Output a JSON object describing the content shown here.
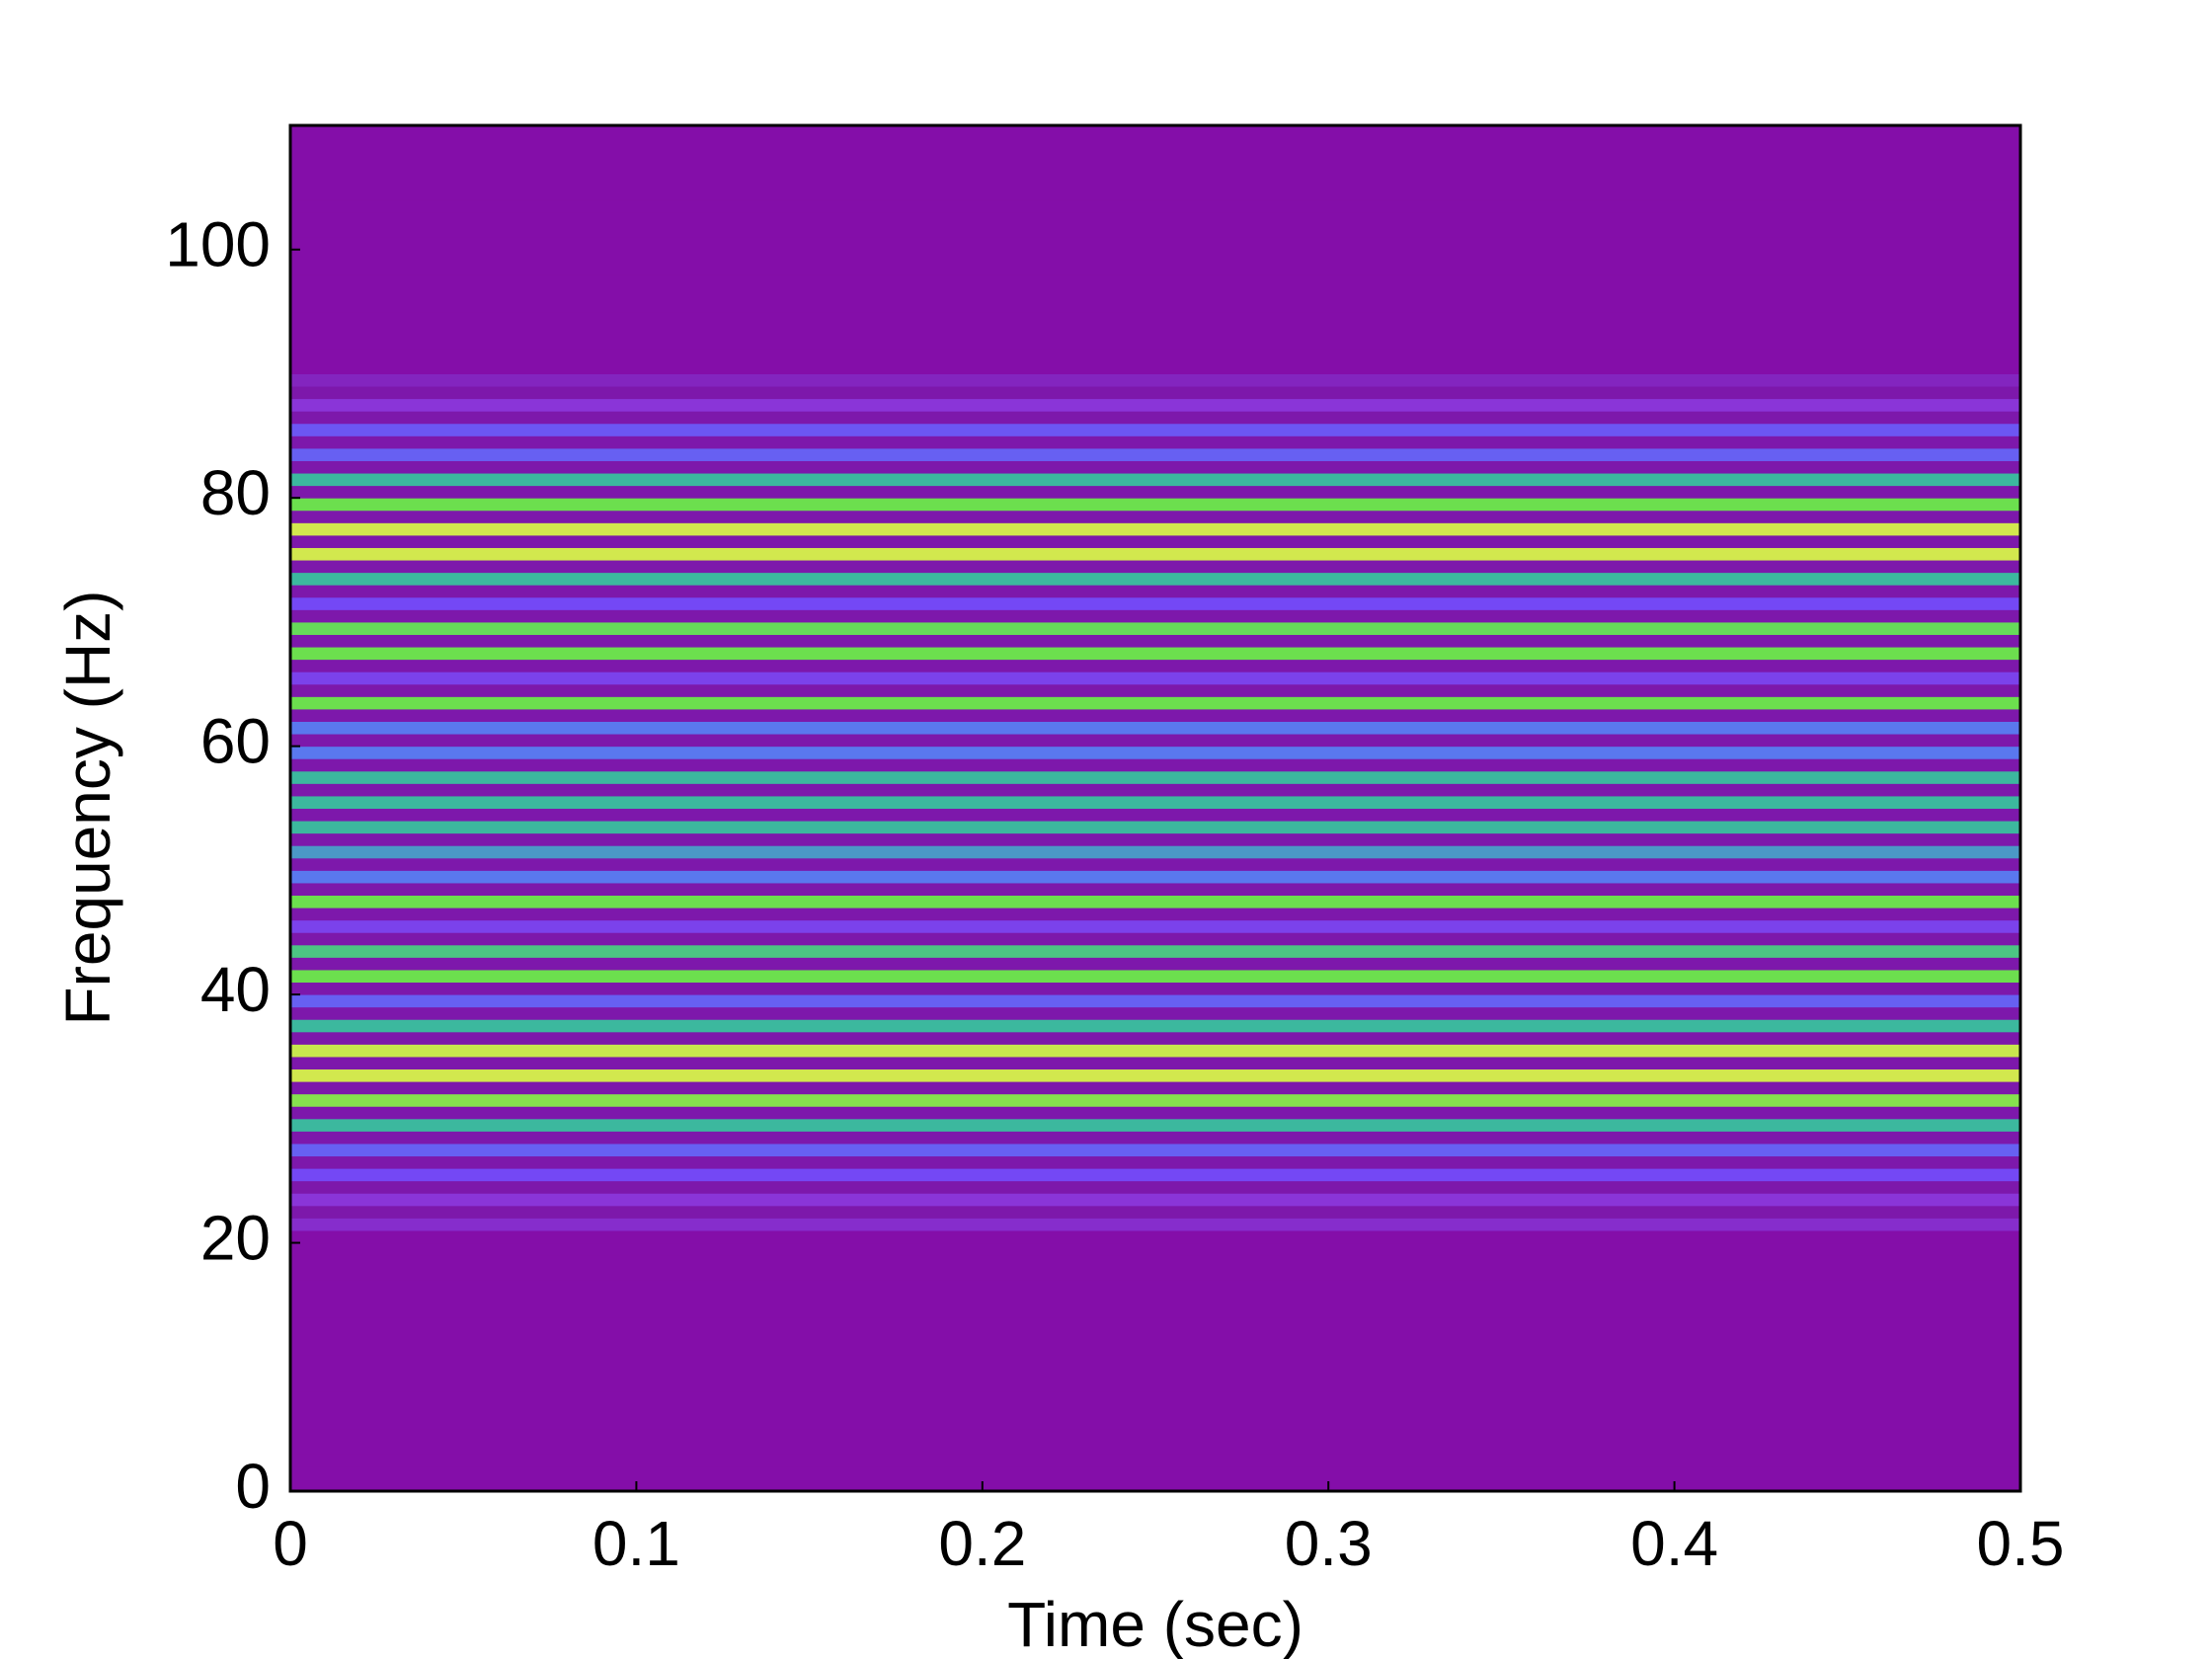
{
  "chart_data": {
    "type": "heatmap",
    "x_label": "Time (sec)",
    "y_label": "Frequency (Hz)",
    "xlim": [
      0,
      0.5
    ],
    "xticks": [
      0,
      0.1,
      0.2,
      0.3,
      0.4,
      0.5
    ],
    "ylim": [
      0,
      110
    ],
    "yticks": [
      0,
      20,
      40,
      60,
      80,
      100
    ],
    "bins": [
      0,
      1,
      2,
      3,
      4,
      5,
      6,
      7,
      8,
      9,
      10,
      11,
      12,
      13,
      14,
      15,
      16,
      17,
      18,
      19,
      20,
      21,
      22,
      23,
      24,
      25,
      26,
      27,
      28,
      29,
      30,
      31,
      32,
      33,
      34,
      35,
      36,
      37,
      38,
      39,
      40,
      41,
      42,
      43,
      44,
      45,
      46,
      47,
      48,
      49,
      50,
      51,
      52,
      53,
      54,
      55,
      56,
      57,
      58,
      59,
      60,
      61,
      62,
      63,
      64,
      65,
      66,
      67,
      68,
      69,
      70,
      71,
      72,
      73,
      74,
      75,
      76,
      77,
      78,
      79,
      80,
      81,
      82,
      83,
      84,
      85,
      86,
      87,
      88,
      89,
      90,
      91,
      92,
      93,
      94,
      95,
      96,
      97,
      98,
      99,
      100,
      101,
      102,
      103,
      104,
      105,
      106,
      107,
      108,
      109,
      110
    ],
    "values": [
      0,
      0,
      0,
      0,
      0,
      0,
      0,
      0,
      0,
      0,
      0,
      0,
      0,
      0,
      0,
      0,
      0,
      0,
      0,
      0,
      0,
      0.15,
      0.02,
      0.2,
      0.02,
      0.35,
      0.02,
      0.4,
      0.02,
      0.55,
      0.02,
      0.75,
      0.02,
      0.9,
      0.02,
      0.88,
      0.02,
      0.55,
      0.02,
      0.4,
      0.02,
      0.7,
      0.02,
      0.6,
      0.02,
      0.3,
      0.02,
      0.7,
      0.02,
      0.45,
      0.02,
      0.5,
      0.02,
      0.55,
      0.02,
      0.55,
      0.02,
      0.55,
      0.02,
      0.45,
      0.02,
      0.45,
      0.02,
      0.7,
      0.02,
      0.3,
      0.02,
      0.7,
      0.02,
      0.68,
      0.02,
      0.35,
      0.02,
      0.55,
      0.02,
      0.9,
      0.02,
      0.9,
      0.02,
      0.7,
      0.02,
      0.55,
      0.02,
      0.4,
      0.02,
      0.38,
      0.02,
      0.2,
      0.02,
      0.1,
      0,
      0,
      0,
      0,
      0,
      0,
      0,
      0,
      0,
      0,
      0,
      0,
      0,
      0,
      0,
      0,
      0,
      0,
      0,
      0,
      0
    ],
    "colormap": [
      {
        "value": 0,
        "color": "#840ea9"
      },
      {
        "value": 0.02,
        "color": "#7d18ab"
      },
      {
        "value": 0.2,
        "color": "#8a35d8"
      },
      {
        "value": 0.35,
        "color": "#7448f5"
      },
      {
        "value": 0.45,
        "color": "#5a78ee"
      },
      {
        "value": 0.55,
        "color": "#3cb89e"
      },
      {
        "value": 0.7,
        "color": "#6cdf4e"
      },
      {
        "value": 0.9,
        "color": "#d2e84e"
      }
    ]
  }
}
